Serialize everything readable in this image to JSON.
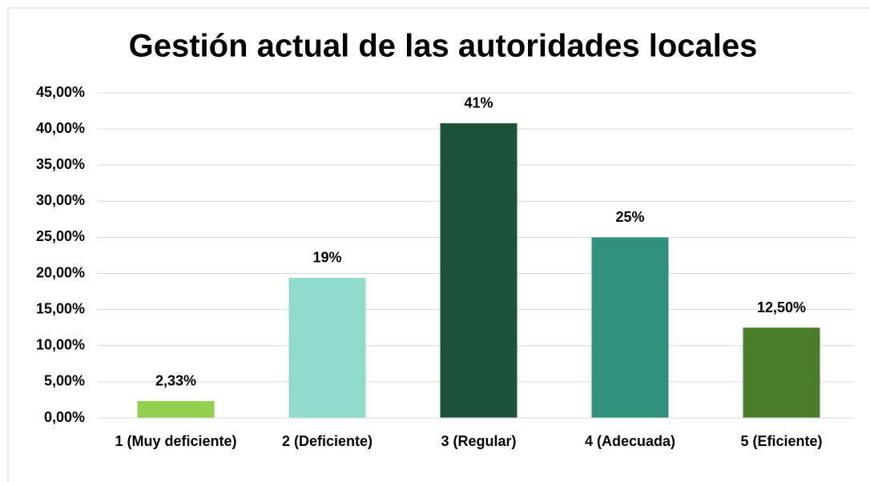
{
  "chart_data": {
    "type": "bar",
    "title": "Gestión actual de las autoridades locales",
    "categories": [
      "1 (Muy deficiente)",
      "2 (Deficiente)",
      "3 (Regular)",
      "4 (Adecuada)",
      "5 (Eficiente)"
    ],
    "values": [
      2.33,
      19.4,
      40.8,
      25,
      12.5
    ],
    "value_labels": [
      "2,33%",
      "19%",
      "41%",
      "25%",
      "12,50%"
    ],
    "colors": [
      "#92d050",
      "#92dccd",
      "#1c533a",
      "#31927c",
      "#4a7c2a"
    ],
    "ylim": [
      0,
      45
    ],
    "yticks": [
      {
        "value": 0,
        "label": "0,00%"
      },
      {
        "value": 5,
        "label": "5,00%"
      },
      {
        "value": 10,
        "label": "10,00%"
      },
      {
        "value": 15,
        "label": "15,00%"
      },
      {
        "value": 20,
        "label": "20,00%"
      },
      {
        "value": 25,
        "label": "25,00%"
      },
      {
        "value": 30,
        "label": "30,00%"
      },
      {
        "value": 35,
        "label": "35,00%"
      },
      {
        "value": 40,
        "label": "40,00%"
      },
      {
        "value": 45,
        "label": "45,00%"
      }
    ],
    "grid": true
  }
}
